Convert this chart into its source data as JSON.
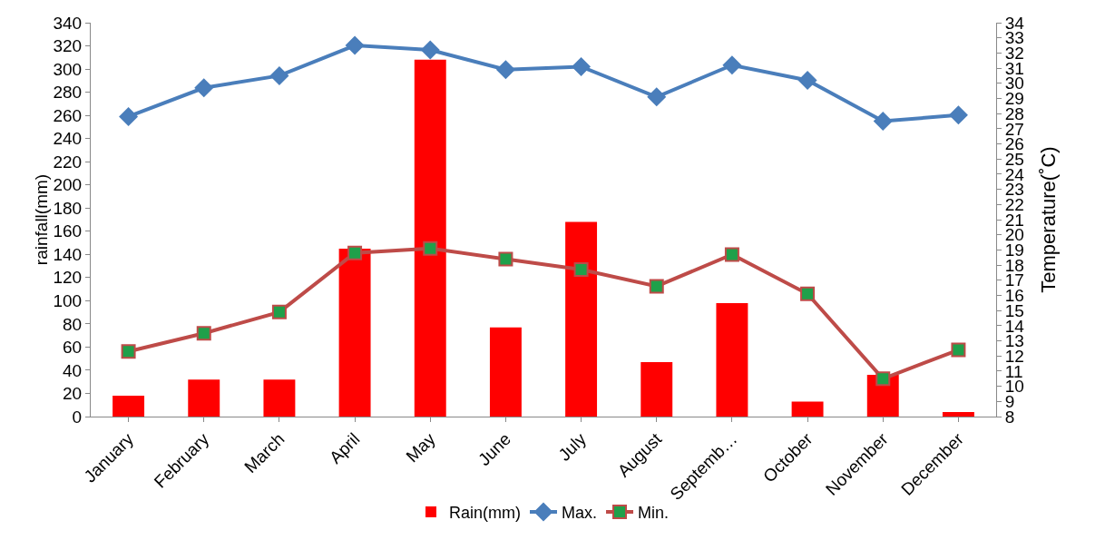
{
  "chart_data": {
    "type": "bar",
    "ylabel": "rainfall(mm)",
    "y2label": "Temperature(˚C)",
    "categories": [
      "January",
      "February",
      "March",
      "April",
      "May",
      "June",
      "July",
      "August",
      "Septemb…",
      "October",
      "November",
      "December"
    ],
    "series": [
      {
        "name": "Rain(mm)",
        "color": "#ff0000",
        "values": [
          18,
          32,
          32,
          145,
          308,
          77,
          168,
          47,
          98,
          13,
          36,
          4
        ]
      },
      {
        "name": "Max.",
        "type": "line",
        "axis": "y2",
        "marker": "diamond",
        "color": "#4a7ebb",
        "values": [
          27.8,
          29.7,
          30.5,
          32.5,
          32.2,
          30.9,
          31.1,
          29.1,
          31.2,
          30.2,
          27.5,
          27.9
        ]
      },
      {
        "name": "Min.",
        "type": "line",
        "axis": "y2",
        "marker": "square",
        "color": "#be4b48",
        "colors": [
          "#1fa04a",
          "#1fa04a",
          "#1fa04a",
          "#1fa04a",
          "#1fa04a",
          "#1fa04a",
          "#1fa04a",
          "#1fa04a",
          "#1fa04a",
          "#1fa04a",
          "#1fa04a",
          "#1fa04a"
        ],
        "values": [
          12.3,
          13.5,
          14.9,
          18.8,
          19.1,
          18.4,
          17.7,
          16.6,
          18.7,
          16.1,
          10.5,
          12.4
        ]
      }
    ],
    "ylim": [
      0,
      340
    ],
    "yticks": [
      0,
      20,
      40,
      60,
      80,
      100,
      120,
      140,
      160,
      180,
      200,
      220,
      240,
      260,
      280,
      300,
      320,
      340
    ],
    "y2lim": [
      8,
      34
    ],
    "y2ticks": [
      8,
      9,
      10,
      11,
      12,
      13,
      14,
      15,
      16,
      17,
      18,
      19,
      20,
      21,
      22,
      23,
      24,
      25,
      26,
      27,
      28,
      29,
      30,
      31,
      32,
      33,
      34
    ],
    "grid": false,
    "legend": "bottom"
  }
}
